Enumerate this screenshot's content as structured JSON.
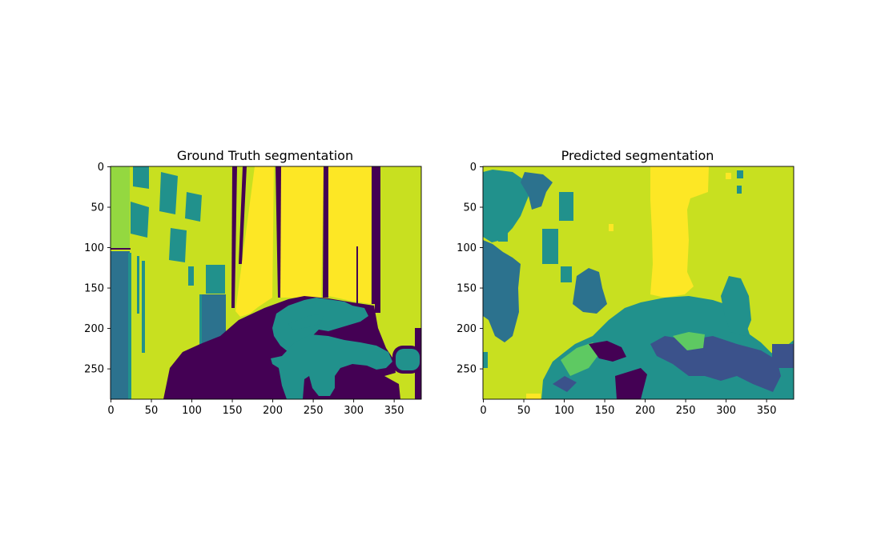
{
  "chart_data": [
    {
      "type": "heatmap",
      "title": "Ground Truth segmentation",
      "x_ticks": [
        0,
        50,
        100,
        150,
        200,
        250,
        300,
        350
      ],
      "y_ticks": [
        0,
        50,
        100,
        150,
        200,
        250
      ],
      "xlim": [
        0,
        384
      ],
      "ylim": [
        288,
        0
      ],
      "colormap": "viridis",
      "colors": {
        "c0": "#440154",
        "c1": "#3b528b",
        "c2": "#2c728e",
        "c3": "#21918c",
        "c4": "#5ec962",
        "c5": "#94d840",
        "c6": "#c8e020",
        "c7": "#fde725"
      }
    },
    {
      "type": "heatmap",
      "title": "Predicted segmentation",
      "x_ticks": [
        0,
        50,
        100,
        150,
        200,
        250,
        300,
        350
      ],
      "y_ticks": [
        0,
        50,
        100,
        150,
        200,
        250
      ],
      "xlim": [
        0,
        384
      ],
      "ylim": [
        288,
        0
      ],
      "colormap": "viridis"
    }
  ]
}
